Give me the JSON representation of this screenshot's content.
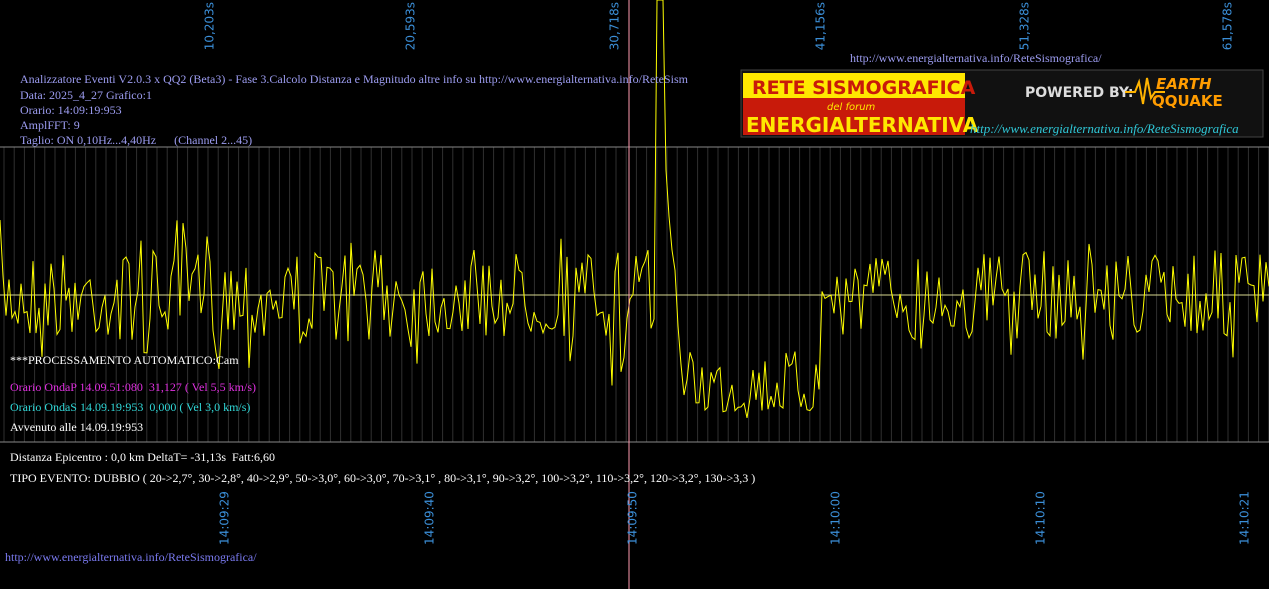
{
  "time_top": [
    "10,203s",
    "20,593s",
    "30,718s",
    "41,156s",
    "51,328s",
    "61,578s"
  ],
  "time_bottom": [
    "14:09:29",
    "14:09:40",
    "14:09:50",
    "14:10:00",
    "14:10:10",
    "14:10:21"
  ],
  "header_url": "http://www.energialternativa.info/ReteSismografica/",
  "info": [
    "Analizzatore Eventi V2.0.3 x QQ2 (Beta3) - Fase 3.Calcolo Distanza e Magnitudo altre info su http://www.energialternativa.info/ReteSism",
    "Data: 2025_4_27 Grafico:1",
    "Orario: 14:09:19:953",
    "AmplFFT: 9",
    "Taglio: ON 0,10Hz...4,40Hz      (Channel 2...45)"
  ],
  "logo": {
    "line1": "RETE SISMOGRAFICA",
    "line2": "del forum",
    "line3": "ENERGIALTERNATIVA",
    "powered": "POWERED BY:",
    "brand1": "EARTH",
    "brand2": "QQUAKE",
    "url": "http://www.energialternativa.info/ReteSismografica"
  },
  "processing": "***PROCESSAMENTO AUTOMATICO:Cam",
  "wave_p": "Orario OndaP 14.09.51:080  31,127 ( Vel 5,5 km/s)",
  "wave_s": "Orario OndaS 14.09.19:953  0,000 ( Vel 3,0 km/s)",
  "occurred": "Avvenuto alle 14.09.19:953",
  "distance": "Distanza Epicentro : 0,0 km DeltaT= -31,13s  Fatt:6,60",
  "event_type": "TIPO EVENTO: DUBBIO ( 20->2,7°, 30->2,8°, 40->2,9°, 50->3,0°, 60->3,0°, 70->3,1° , 80->3,1°, 90->3,2°, 100->3,2°, 110->3,2°, 120->3,2°, 130->3,3 )",
  "footer_url": "http://www.energialternativa.info/ReteSismografica/"
}
